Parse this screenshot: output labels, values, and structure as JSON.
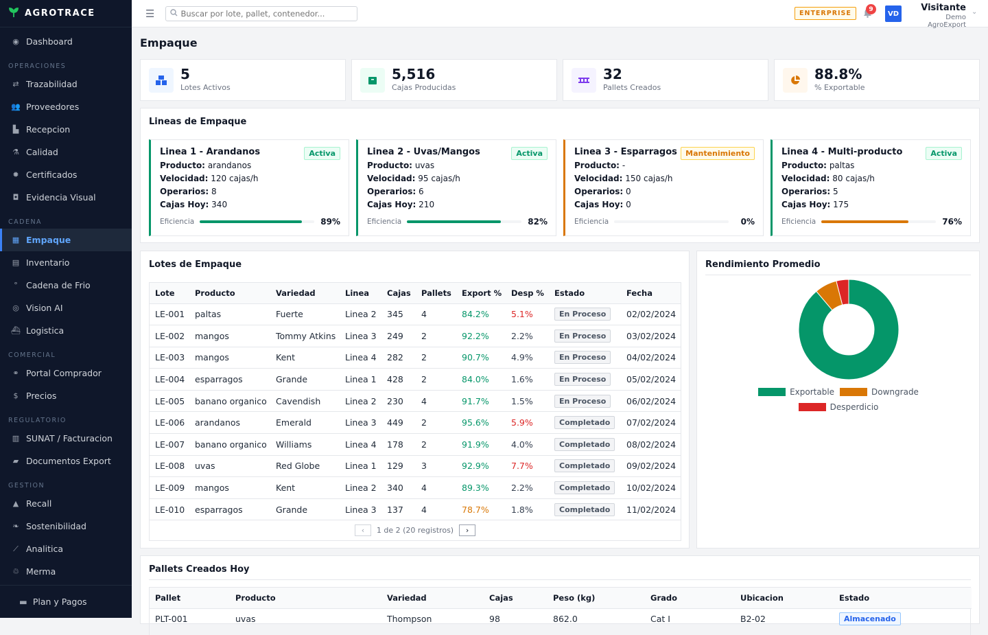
{
  "brand": {
    "name": "AGROTRACE",
    "icon": "leaf-icon"
  },
  "sidebar": {
    "top": [
      {
        "label": "Dashboard",
        "icon": "dashboard-icon"
      }
    ],
    "sections": [
      {
        "title": "OPERACIONES",
        "items": [
          {
            "label": "Trazabilidad",
            "icon": "route-icon"
          },
          {
            "label": "Proveedores",
            "icon": "users-icon"
          },
          {
            "label": "Recepcion",
            "icon": "truck-icon"
          },
          {
            "label": "Calidad",
            "icon": "flask-icon"
          },
          {
            "label": "Certificados",
            "icon": "certificate-icon"
          },
          {
            "label": "Evidencia Visual",
            "icon": "camera-icon"
          }
        ]
      },
      {
        "title": "CADENA",
        "items": [
          {
            "label": "Empaque",
            "icon": "boxes-icon",
            "active": true
          },
          {
            "label": "Inventario",
            "icon": "warehouse-icon"
          },
          {
            "label": "Cadena de Frio",
            "icon": "thermometer-icon"
          },
          {
            "label": "Vision AI",
            "icon": "eye-icon"
          },
          {
            "label": "Logistica",
            "icon": "ship-icon"
          }
        ]
      },
      {
        "title": "COMERCIAL",
        "items": [
          {
            "label": "Portal Comprador",
            "icon": "handshake-icon"
          },
          {
            "label": "Precios",
            "icon": "dollar-icon"
          }
        ]
      },
      {
        "title": "REGULATORIO",
        "items": [
          {
            "label": "SUNAT / Facturacion",
            "icon": "invoice-icon"
          },
          {
            "label": "Documentos Export",
            "icon": "folder-icon"
          }
        ]
      },
      {
        "title": "GESTION",
        "items": [
          {
            "label": "Recall",
            "icon": "warning-icon"
          },
          {
            "label": "Sostenibilidad",
            "icon": "leaf-icon"
          },
          {
            "label": "Analitica",
            "icon": "chart-line-icon"
          },
          {
            "label": "Merma",
            "icon": "recycle-icon"
          }
        ]
      }
    ],
    "plan": {
      "label": "Plan y Pagos",
      "icon": "credit-card-icon"
    }
  },
  "header": {
    "search_placeholder": "Buscar por lote, pallet, contenedor...",
    "plan_badge": "ENTERPRISE",
    "notifications": "9",
    "avatar": "VD",
    "user_name": "Visitante",
    "org": "Demo AgroExport"
  },
  "page": {
    "title": "Empaque"
  },
  "kpis": [
    {
      "value": "5",
      "label": "Lotes Activos",
      "icon": "boxes-icon",
      "color": "#2563eb",
      "bg": "#eff6ff"
    },
    {
      "value": "5,516",
      "label": "Cajas Producidas",
      "icon": "box-icon",
      "color": "#059669",
      "bg": "#ecfdf5"
    },
    {
      "value": "32",
      "label": "Pallets Creados",
      "icon": "pallet-icon",
      "color": "#7c3aed",
      "bg": "#f5f3ff"
    },
    {
      "value": "88.8%",
      "label": "% Exportable",
      "icon": "pie-chart-icon",
      "color": "#d97706",
      "bg": "#fff7ed"
    }
  ],
  "lines_card": {
    "title": "Lineas de Empaque",
    "labels": {
      "product": "Producto:",
      "speed": "Velocidad:",
      "operators": "Operarios:",
      "boxes": "Cajas Hoy:",
      "efficiency": "Eficiencia"
    },
    "lines": [
      {
        "name": "Linea 1 - Arandanos",
        "status": "Activa",
        "status_type": "green",
        "product": "arandanos",
        "speed": "120 cajas/h",
        "operators": "8",
        "boxes": "340",
        "efficiency": 89,
        "efficiency_label": "89%",
        "bar_color": "#059669"
      },
      {
        "name": "Linea 2 - Uvas/Mangos",
        "status": "Activa",
        "status_type": "green",
        "product": "uvas",
        "speed": "95 cajas/h",
        "operators": "6",
        "boxes": "210",
        "efficiency": 82,
        "efficiency_label": "82%",
        "bar_color": "#059669"
      },
      {
        "name": "Linea 3 - Esparragos",
        "status": "Mantenimiento",
        "status_type": "orange",
        "product": "-",
        "speed": "150 cajas/h",
        "operators": "0",
        "boxes": "0",
        "efficiency": 0,
        "efficiency_label": "0%",
        "bar_color": "#d97706"
      },
      {
        "name": "Linea 4 - Multi-producto",
        "status": "Activa",
        "status_type": "green",
        "product": "paltas",
        "speed": "80 cajas/h",
        "operators": "5",
        "boxes": "175",
        "efficiency": 76,
        "efficiency_label": "76%",
        "bar_color": "#d97706"
      }
    ]
  },
  "lotes": {
    "title": "Lotes de Empaque",
    "columns": [
      "Lote",
      "Producto",
      "Variedad",
      "Linea",
      "Cajas",
      "Pallets",
      "Export %",
      "Desp %",
      "Estado",
      "Fecha"
    ],
    "rows": [
      {
        "lote": "LE-001",
        "producto": "paltas",
        "variedad": "Fuerte",
        "linea": "Linea 2",
        "cajas": "345",
        "pallets": "4",
        "export": "84.2%",
        "export_color": "#059669",
        "desp": "5.1%",
        "desp_color": "#dc2626",
        "estado": "En Proceso",
        "fecha": "02/02/2024"
      },
      {
        "lote": "LE-002",
        "producto": "mangos",
        "variedad": "Tommy Atkins",
        "linea": "Linea 3",
        "cajas": "249",
        "pallets": "2",
        "export": "92.2%",
        "export_color": "#059669",
        "desp": "2.2%",
        "desp_color": "#374151",
        "estado": "En Proceso",
        "fecha": "03/02/2024"
      },
      {
        "lote": "LE-003",
        "producto": "mangos",
        "variedad": "Kent",
        "linea": "Linea 4",
        "cajas": "282",
        "pallets": "2",
        "export": "90.7%",
        "export_color": "#059669",
        "desp": "4.9%",
        "desp_color": "#374151",
        "estado": "En Proceso",
        "fecha": "04/02/2024"
      },
      {
        "lote": "LE-004",
        "producto": "esparragos",
        "variedad": "Grande",
        "linea": "Linea 1",
        "cajas": "428",
        "pallets": "2",
        "export": "84.0%",
        "export_color": "#059669",
        "desp": "1.6%",
        "desp_color": "#374151",
        "estado": "En Proceso",
        "fecha": "05/02/2024"
      },
      {
        "lote": "LE-005",
        "producto": "banano organico",
        "variedad": "Cavendish",
        "linea": "Linea 2",
        "cajas": "230",
        "pallets": "4",
        "export": "91.7%",
        "export_color": "#059669",
        "desp": "1.5%",
        "desp_color": "#374151",
        "estado": "En Proceso",
        "fecha": "06/02/2024"
      },
      {
        "lote": "LE-006",
        "producto": "arandanos",
        "variedad": "Emerald",
        "linea": "Linea 3",
        "cajas": "449",
        "pallets": "2",
        "export": "95.6%",
        "export_color": "#059669",
        "desp": "5.9%",
        "desp_color": "#dc2626",
        "estado": "Completado",
        "fecha": "07/02/2024"
      },
      {
        "lote": "LE-007",
        "producto": "banano organico",
        "variedad": "Williams",
        "linea": "Linea 4",
        "cajas": "178",
        "pallets": "2",
        "export": "91.9%",
        "export_color": "#059669",
        "desp": "4.0%",
        "desp_color": "#374151",
        "estado": "Completado",
        "fecha": "08/02/2024"
      },
      {
        "lote": "LE-008",
        "producto": "uvas",
        "variedad": "Red Globe",
        "linea": "Linea 1",
        "cajas": "129",
        "pallets": "3",
        "export": "92.9%",
        "export_color": "#059669",
        "desp": "7.7%",
        "desp_color": "#dc2626",
        "estado": "Completado",
        "fecha": "09/02/2024"
      },
      {
        "lote": "LE-009",
        "producto": "mangos",
        "variedad": "Kent",
        "linea": "Linea 2",
        "cajas": "340",
        "pallets": "4",
        "export": "89.3%",
        "export_color": "#059669",
        "desp": "2.2%",
        "desp_color": "#374151",
        "estado": "Completado",
        "fecha": "10/02/2024"
      },
      {
        "lote": "LE-010",
        "producto": "esparragos",
        "variedad": "Grande",
        "linea": "Linea 3",
        "cajas": "137",
        "pallets": "4",
        "export": "78.7%",
        "export_color": "#d97706",
        "desp": "1.8%",
        "desp_color": "#374151",
        "estado": "Completado",
        "fecha": "11/02/2024"
      }
    ],
    "pager": "1 de 2 (20 registros)"
  },
  "rendimiento": {
    "title": "Rendimiento Promedio"
  },
  "chart_data": {
    "type": "pie",
    "title": "Rendimiento Promedio",
    "categories": [
      "Exportable",
      "Downgrade",
      "Desperdicio"
    ],
    "values": [
      88.8,
      7.2,
      4.0
    ],
    "colors": [
      "#059669",
      "#d97706",
      "#dc2626"
    ],
    "donut": true,
    "legend": "bottom"
  },
  "pallets": {
    "title": "Pallets Creados Hoy",
    "columns": [
      "Pallet",
      "Producto",
      "Variedad",
      "Cajas",
      "Peso (kg)",
      "Grado",
      "Ubicacion",
      "Estado"
    ],
    "rows": [
      {
        "pallet": "PLT-001",
        "producto": "uvas",
        "variedad": "Thompson",
        "cajas": "98",
        "peso": "862.0",
        "grado": "Cat I",
        "ubicacion": "B2-02",
        "estado": "Almacenado"
      }
    ]
  }
}
